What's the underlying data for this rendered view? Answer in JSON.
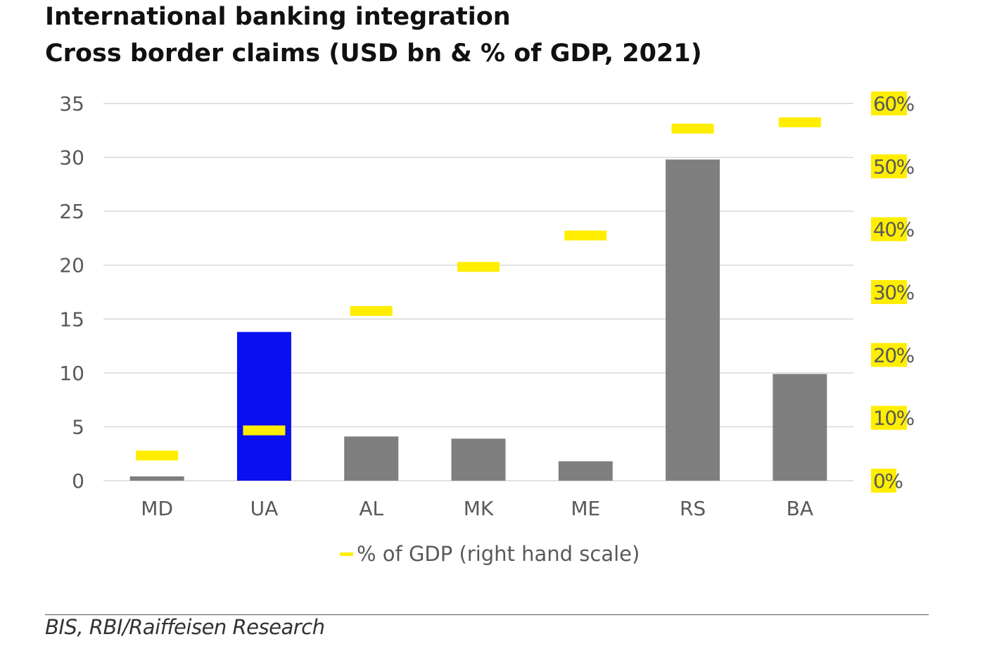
{
  "title": "International banking integration",
  "subtitle": "Cross border claims (USD bn & % of GDP, 2021)",
  "source": "BIS, RBI/Raiffeisen Research",
  "colors": {
    "bar_default": "#7f7f7f",
    "bar_highlight": "#0a0ff0",
    "marker": "#ffee00",
    "grid": "#d9d9d9",
    "axis_text": "#595959"
  },
  "chart_data": {
    "type": "bar",
    "categories": [
      "MD",
      "UA",
      "AL",
      "MK",
      "ME",
      "RS",
      "BA"
    ],
    "series": [
      {
        "name": "",
        "axis": "left",
        "values": [
          0.4,
          13.8,
          4.1,
          3.9,
          1.8,
          29.8,
          9.9
        ],
        "highlight_index": 1
      },
      {
        "name": "% of GDP (right hand scale)",
        "axis": "right",
        "type": "marker",
        "values": [
          4,
          8,
          27,
          34,
          39,
          56,
          57
        ]
      }
    ],
    "y_left": {
      "ticks": [
        "0",
        "5",
        "10",
        "15",
        "20",
        "25",
        "30",
        "35"
      ],
      "range": [
        0,
        35
      ]
    },
    "y_right": {
      "ticks": [
        "0%",
        "10%",
        "20%",
        "30%",
        "40%",
        "50%",
        "60%"
      ],
      "range": [
        0,
        60
      ]
    },
    "grid": true,
    "legend": {
      "placement": "bottom-center"
    }
  }
}
